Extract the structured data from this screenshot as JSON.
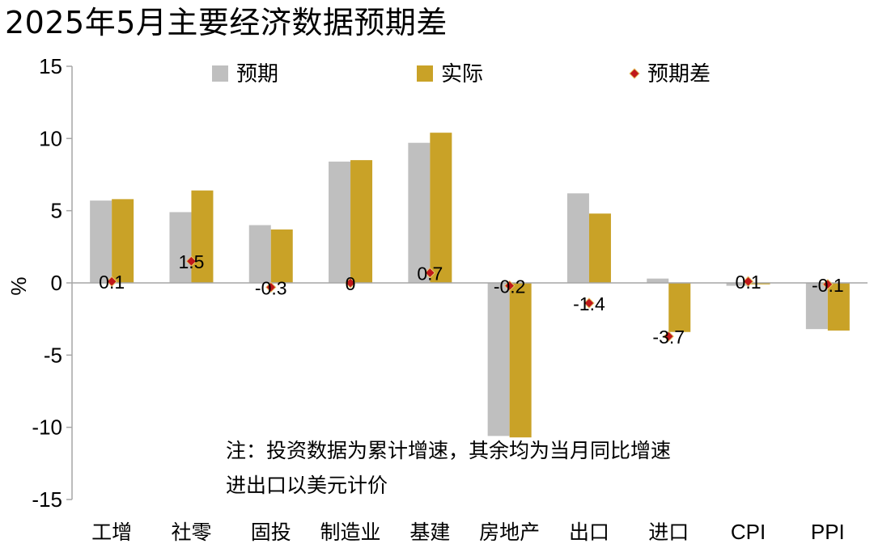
{
  "title": "2025年5月主要经济数据预期差",
  "chart_data": {
    "type": "bar",
    "title": "2025年5月主要经济数据预期差",
    "ylabel": "%",
    "xlabel": "",
    "ylim": [
      -15,
      15
    ],
    "yticks": [
      15,
      10,
      5,
      0,
      -5,
      -10,
      -15
    ],
    "categories": [
      "工增",
      "社零",
      "固投",
      "制造业",
      "基建",
      "房地产",
      "出口",
      "进口",
      "CPI",
      "PPI"
    ],
    "series": [
      {
        "name": "预期",
        "color": "#BFBFBF",
        "values": [
          5.7,
          4.9,
          4.0,
          8.4,
          9.7,
          -10.6,
          6.2,
          0.3,
          -0.2,
          -3.2
        ]
      },
      {
        "name": "实际",
        "color": "#C9A227",
        "values": [
          5.8,
          6.4,
          3.7,
          8.5,
          10.4,
          -10.7,
          4.8,
          -3.4,
          -0.1,
          -3.3
        ]
      },
      {
        "name": "预期差",
        "color": "#C0181A",
        "marker": "diamond",
        "values": [
          0.1,
          1.5,
          -0.3,
          0,
          0.7,
          -0.2,
          -1.4,
          -3.7,
          0.1,
          -0.1
        ],
        "labels": [
          "0.1",
          "1.5",
          "-0.3",
          "0",
          "0.7",
          "-0.2",
          "-1.4",
          "-3.7",
          "0.1",
          "-0.1"
        ]
      }
    ],
    "legend_position": "top",
    "grid": false,
    "note": [
      "注：投资数据为累计增速，其余均为当月同比增速",
      "进出口以美元计价"
    ]
  }
}
